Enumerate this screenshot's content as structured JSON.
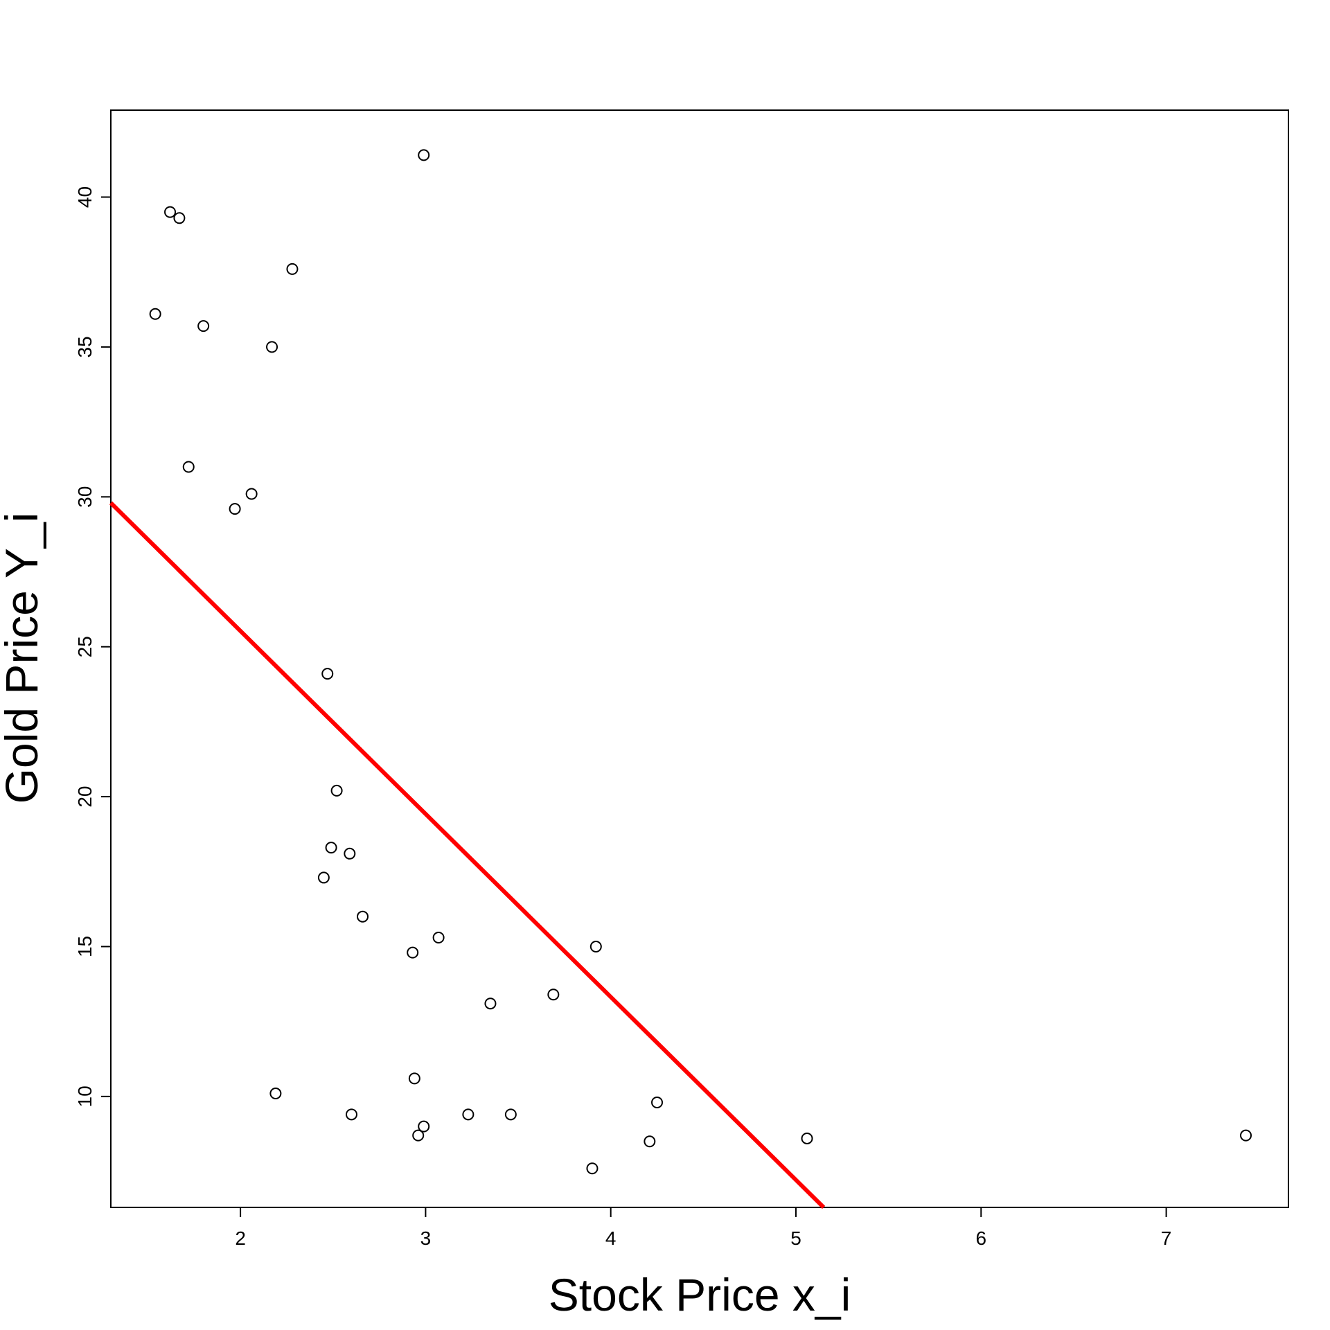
{
  "chart_data": {
    "type": "scatter",
    "title": "",
    "xlabel": "Stock Price x_i",
    "ylabel": "Gold Price Y_i",
    "xlim": [
      1.3,
      7.66
    ],
    "ylim": [
      6.3,
      42.9
    ],
    "xticks": [
      2,
      3,
      4,
      5,
      6,
      7
    ],
    "yticks": [
      10,
      15,
      20,
      25,
      30,
      35,
      40
    ],
    "grid": false,
    "legend": "none",
    "series": [
      {
        "color": "#000000",
        "marker": "open-circle",
        "points": [
          {
            "x": 2.99,
            "y": 41.4
          },
          {
            "x": 1.62,
            "y": 39.5
          },
          {
            "x": 1.67,
            "y": 39.3
          },
          {
            "x": 2.28,
            "y": 37.6
          },
          {
            "x": 1.54,
            "y": 36.1
          },
          {
            "x": 1.8,
            "y": 35.7
          },
          {
            "x": 2.17,
            "y": 35.0
          },
          {
            "x": 1.72,
            "y": 31.0
          },
          {
            "x": 2.06,
            "y": 30.1
          },
          {
            "x": 1.97,
            "y": 29.6
          },
          {
            "x": 2.47,
            "y": 24.1
          },
          {
            "x": 2.52,
            "y": 20.2
          },
          {
            "x": 2.49,
            "y": 18.3
          },
          {
            "x": 2.59,
            "y": 18.1
          },
          {
            "x": 2.45,
            "y": 17.3
          },
          {
            "x": 2.66,
            "y": 16.0
          },
          {
            "x": 3.07,
            "y": 15.3
          },
          {
            "x": 3.92,
            "y": 15.0
          },
          {
            "x": 2.93,
            "y": 14.8
          },
          {
            "x": 3.69,
            "y": 13.4
          },
          {
            "x": 3.35,
            "y": 13.1
          },
          {
            "x": 2.94,
            "y": 10.6
          },
          {
            "x": 2.19,
            "y": 10.1
          },
          {
            "x": 4.25,
            "y": 9.8
          },
          {
            "x": 2.6,
            "y": 9.4
          },
          {
            "x": 3.23,
            "y": 9.4
          },
          {
            "x": 3.46,
            "y": 9.4
          },
          {
            "x": 2.99,
            "y": 9.0
          },
          {
            "x": 2.96,
            "y": 8.7
          },
          {
            "x": 4.21,
            "y": 8.5
          },
          {
            "x": 5.06,
            "y": 8.6
          },
          {
            "x": 7.43,
            "y": 8.7
          },
          {
            "x": 3.9,
            "y": 7.6
          }
        ]
      }
    ],
    "fit_line": {
      "color": "#ff0000",
      "x": [
        1.3,
        5.15
      ],
      "y": [
        29.8,
        6.3
      ]
    }
  }
}
